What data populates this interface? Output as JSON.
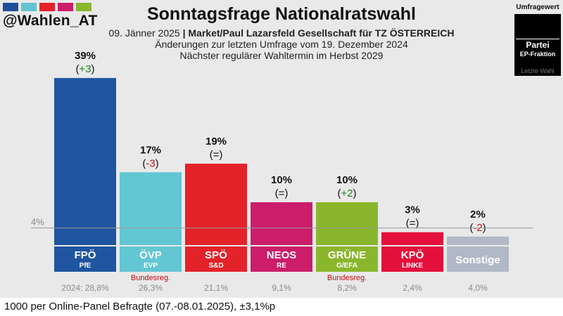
{
  "brand": "@Wahlen_AT",
  "header": {
    "title": "Sonntagsfrage Nationalratswahl",
    "line1_date": "09. Jänner 2025",
    "line1_sep": "|",
    "line1_pollster": "Market/Paul Lazarsfeld Gesellschaft für TZ ÖSTERREICH",
    "line2": "Änderungen zur letzten Umfrage vom 19. Dezember 2024",
    "line3": "Nächster regulärer Wahltermin im Herbst 2029"
  },
  "legend": {
    "top": "Umfragewert",
    "party": "Partei",
    "ep": "EP-Fraktion",
    "last": "Letzte Wahl"
  },
  "swatch_colors": [
    "#1f4e9b",
    "#63c3d0",
    "#e3222a",
    "#cc1d6a",
    "#8ab62c"
  ],
  "chart_data": {
    "type": "bar",
    "ylim": [
      0,
      40
    ],
    "threshold": {
      "value": 4,
      "label": "4%"
    },
    "last_election_prefix": "2024:",
    "bars": [
      {
        "party": "FPÖ",
        "ep": "PfE",
        "value": 39,
        "value_label": "39%",
        "change": 3,
        "change_label": "+3",
        "last": "28,8%",
        "color": "#1f55a0",
        "gov": ""
      },
      {
        "party": "ÖVP",
        "ep": "EVP",
        "value": 17,
        "value_label": "17%",
        "change": -3,
        "change_label": "-3",
        "last": "26,3%",
        "color": "#63c6d3",
        "gov": "Bundesreg."
      },
      {
        "party": "SPÖ",
        "ep": "S&D",
        "value": 19,
        "value_label": "19%",
        "change": 0,
        "change_label": "=",
        "last": "21,1%",
        "color": "#e3222a",
        "gov": ""
      },
      {
        "party": "NEOS",
        "ep": "RE",
        "value": 10,
        "value_label": "10%",
        "change": 0,
        "change_label": "=",
        "last": "9,1%",
        "color": "#cc1d6a",
        "gov": ""
      },
      {
        "party": "GRÜNE",
        "ep": "G/EFA",
        "value": 10,
        "value_label": "10%",
        "change": 2,
        "change_label": "+2",
        "last": "8,2%",
        "color": "#8ab62c",
        "gov": "Bundesreg."
      },
      {
        "party": "KPÖ",
        "ep": "LINKE",
        "value": 3,
        "value_label": "3%",
        "change": 0,
        "change_label": "=",
        "last": "2,4%",
        "color": "#e4103c",
        "gov": ""
      },
      {
        "party": "Sonstige",
        "ep": "",
        "value": 2,
        "value_label": "2%",
        "change": -2,
        "change_label": "-2",
        "last": "4,0%",
        "color": "#b1b8c6",
        "gov": ""
      }
    ],
    "change_colors": {
      "positive": "#1d7a1d",
      "negative": "#d01010",
      "neutral": "#111111"
    }
  },
  "footer": "1000 per Online-Panel Befragte (07.-08.01.2025), ±3,1%p"
}
